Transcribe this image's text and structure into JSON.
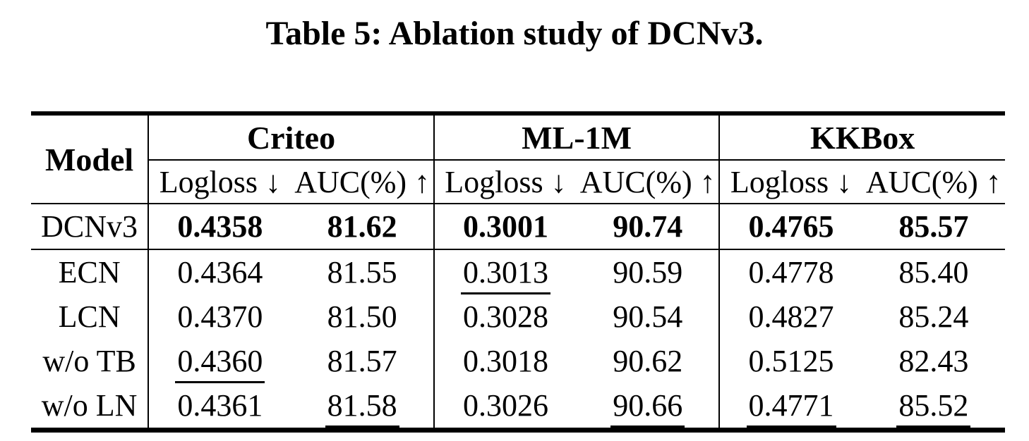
{
  "title": "Table 5: Ablation study of DCNv3.",
  "colors": {
    "background": "#ffffff",
    "text": "#000000",
    "rule": "#000000"
  },
  "table": {
    "model_header": "Model",
    "groups": [
      {
        "label": "Criteo",
        "metrics": [
          "Logloss ↓",
          "AUC(%) ↑"
        ]
      },
      {
        "label": "ML-1M",
        "metrics": [
          "Logloss ↓",
          "AUC(%) ↑"
        ]
      },
      {
        "label": "KKBox",
        "metrics": [
          "Logloss ↓",
          "AUC(%) ↑"
        ]
      }
    ],
    "rows": [
      {
        "model": "DCNv3",
        "separator_below": true,
        "values": [
          {
            "text": "0.4358",
            "bold": true,
            "underline": false
          },
          {
            "text": "81.62",
            "bold": true,
            "underline": false
          },
          {
            "text": "0.3001",
            "bold": true,
            "underline": false
          },
          {
            "text": "90.74",
            "bold": true,
            "underline": false
          },
          {
            "text": "0.4765",
            "bold": true,
            "underline": false
          },
          {
            "text": "85.57",
            "bold": true,
            "underline": false
          }
        ]
      },
      {
        "model": "ECN",
        "separator_below": false,
        "values": [
          {
            "text": "0.4364",
            "bold": false,
            "underline": false
          },
          {
            "text": "81.55",
            "bold": false,
            "underline": false
          },
          {
            "text": "0.3013",
            "bold": false,
            "underline": true
          },
          {
            "text": "90.59",
            "bold": false,
            "underline": false
          },
          {
            "text": "0.4778",
            "bold": false,
            "underline": false
          },
          {
            "text": "85.40",
            "bold": false,
            "underline": false
          }
        ]
      },
      {
        "model": "LCN",
        "separator_below": false,
        "values": [
          {
            "text": "0.4370",
            "bold": false,
            "underline": false
          },
          {
            "text": "81.50",
            "bold": false,
            "underline": false
          },
          {
            "text": "0.3028",
            "bold": false,
            "underline": false
          },
          {
            "text": "90.54",
            "bold": false,
            "underline": false
          },
          {
            "text": "0.4827",
            "bold": false,
            "underline": false
          },
          {
            "text": "85.24",
            "bold": false,
            "underline": false
          }
        ]
      },
      {
        "model": "w/o TB",
        "separator_below": false,
        "values": [
          {
            "text": "0.4360",
            "bold": false,
            "underline": true
          },
          {
            "text": "81.57",
            "bold": false,
            "underline": false
          },
          {
            "text": "0.3018",
            "bold": false,
            "underline": false
          },
          {
            "text": "90.62",
            "bold": false,
            "underline": false
          },
          {
            "text": "0.5125",
            "bold": false,
            "underline": false
          },
          {
            "text": "82.43",
            "bold": false,
            "underline": false
          }
        ]
      },
      {
        "model": "w/o LN",
        "separator_below": false,
        "values": [
          {
            "text": "0.4361",
            "bold": false,
            "underline": false
          },
          {
            "text": "81.58",
            "bold": false,
            "underline": true
          },
          {
            "text": "0.3026",
            "bold": false,
            "underline": false
          },
          {
            "text": "90.66",
            "bold": false,
            "underline": true
          },
          {
            "text": "0.4771",
            "bold": false,
            "underline": true
          },
          {
            "text": "85.52",
            "bold": false,
            "underline": true
          }
        ]
      }
    ]
  }
}
